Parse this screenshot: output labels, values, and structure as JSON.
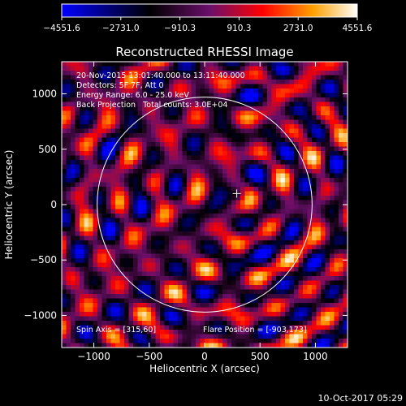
{
  "chart_data": {
    "type": "heatmap",
    "title": "Reconstructed RHESSI Image",
    "xlabel": "Heliocentric X (arcsec)",
    "ylabel": "Heliocentric Y (arcsec)",
    "xlim": [
      -1290,
      1290
    ],
    "ylim": [
      -1290,
      1290
    ],
    "xticks": [
      -1000,
      -500,
      0,
      500,
      1000
    ],
    "yticks": [
      -1000,
      -500,
      0,
      500,
      1000
    ],
    "xtick_labels": [
      "−1000",
      "−500",
      "0",
      "500",
      "1000"
    ],
    "ytick_labels": [
      "−1000",
      "−500",
      "0",
      "500",
      "1000"
    ],
    "colorbar": {
      "min": -4551.6,
      "max": 4551.6,
      "tick_values": [
        -4551.6,
        -2731.0,
        -910.3,
        910.3,
        2731.0,
        4551.6
      ],
      "tick_labels": [
        "−4551.6",
        "−2731.0",
        "−910.3",
        "910.3",
        "2731.0",
        "4551.6"
      ]
    },
    "annotations": {
      "line1": "20-Nov-2015 13:01:40.000 to 13:11:40.000",
      "line2": "Detectors: 5F 7F, Att 0",
      "line3": "Energy Range: 6.0 - 25.0 keV",
      "line4": "Back Projection   Total counts: 3.0E+04",
      "spin_axis": "Spin Axis = [315,60]",
      "flare_position": "Flare Position = [-903,173]"
    },
    "solar_limb_radius_arcsec": 970,
    "marker_position": [
      290,
      100
    ],
    "grid": false
  },
  "footer": {
    "timestamp": "10-Oct-2017 05:29"
  },
  "colors": {
    "background": "#000000",
    "foreground": "#ffffff",
    "colormap": [
      "#0000ff",
      "#000000",
      "#8a1a8a",
      "#ff0000",
      "#ffa500",
      "#ffffff"
    ]
  }
}
